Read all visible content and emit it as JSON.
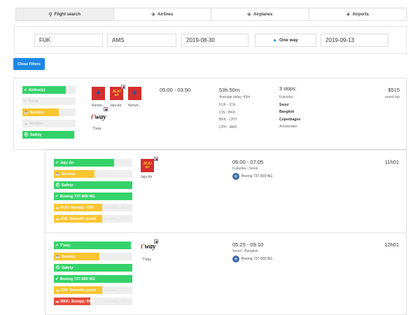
{
  "tabs": [
    {
      "label": "Flight search",
      "icon": "search-icon",
      "glyph": "🔍"
    },
    {
      "label": "Airlines",
      "icon": "airline-icon",
      "glyph": "✈"
    },
    {
      "label": "Airplanes",
      "icon": "airplane-icon",
      "glyph": "✈"
    },
    {
      "label": "Airports",
      "icon": "airport-icon",
      "glyph": "✈"
    }
  ],
  "search": {
    "from": "FUK",
    "to": "AMS",
    "depart_date": "2019-08-30",
    "trip_type": "One way",
    "return_date": "2019-09-13"
  },
  "close_filters_label": "Close Filters",
  "colors": {
    "accent": "#1e88e5",
    "green": "#35d26a",
    "yellow": "#f9c531",
    "red": "#e74c3c"
  },
  "main_result": {
    "ratings": [
      {
        "label": "Airline(s)",
        "icon": "check-icon",
        "level": 0.82,
        "color": "green",
        "dim": false
      },
      {
        "label": "Plane",
        "icon": "plane-icon",
        "level": 0.0,
        "color": "none",
        "dim": true
      },
      {
        "label": "Service",
        "icon": "service-icon",
        "level": 0.69,
        "color": "yellow",
        "dim": false
      },
      {
        "label": "Weather",
        "icon": "weather-icon",
        "level": 0.0,
        "color": "none",
        "dim": true
      },
      {
        "label": "Safety",
        "icon": "safety-icon",
        "level": 0.97,
        "color": "green",
        "dim": false
      }
    ],
    "airlines": [
      "Norwe...",
      "Jeju Air",
      "Norwe..."
    ],
    "airline4": "T'way",
    "time": "05:00 - 03:50",
    "duration": "53h 50m",
    "avg_delay": "Average delay: 43m",
    "legs": [
      "FUK - ICN",
      "ICN - BKK",
      "BKK - CPH",
      "CPH - AMS"
    ],
    "stops_title": "3 stops:",
    "stops": [
      {
        "city": "Fukuoka",
        "bold": false
      },
      {
        "city": "Seoul",
        "bold": true
      },
      {
        "city": "Bangkok",
        "bold": true
      },
      {
        "city": "Copenhagen",
        "bold": true
      },
      {
        "city": "Amsterdam",
        "bold": false
      }
    ],
    "price": "$515",
    "price_note": "round trip"
  },
  "segments": [
    {
      "ratings": [
        {
          "label": "Jeju Air",
          "level": 0.77,
          "color": "green",
          "ghost": ""
        },
        {
          "label": "Service",
          "level": 0.52,
          "color": "yellow",
          "ghost": ""
        },
        {
          "label": "Safety",
          "level": 1.0,
          "color": "green",
          "ghost": ""
        },
        {
          "label": "Boeing 737-800 NG",
          "level": 1.0,
          "color": "green",
          "ghost": ""
        },
        {
          "label": "FUK: Bumpy: 79%",
          "level": 0.62,
          "color": "yellow",
          "ghost": "Humidity, 28°C"
        },
        {
          "label": "ICN: Smooth: good",
          "level": 0.62,
          "color": "yellow",
          "ghost": "weather, 23°C"
        }
      ],
      "airline": "Jeju Air",
      "time": "05:00 - 07:05",
      "route": "Fukuoka - Seoul",
      "aircraft": "Boeing 737-800 NG",
      "duration": "11h01"
    },
    {
      "ratings": [
        {
          "label": "T'way",
          "level": 0.98,
          "color": "green",
          "ghost": ""
        },
        {
          "label": "Service",
          "level": 0.58,
          "color": "yellow",
          "ghost": ""
        },
        {
          "label": "Safety",
          "level": 1.0,
          "color": "green",
          "ghost": ""
        },
        {
          "label": "Boeing 737-800 NG",
          "level": 1.0,
          "color": "green",
          "ghost": ""
        },
        {
          "label": "ICN: Smooth: good",
          "level": 0.62,
          "color": "yellow",
          "ghost": "weather, 23°C"
        },
        {
          "label": "BKK: Bumpy: 84%",
          "level": 0.46,
          "color": "red",
          "ghost": "Humidity, 29°C"
        }
      ],
      "airline": "T'way",
      "time": "05:25 - 09:10",
      "route": "Seoul - Bangkok",
      "aircraft": "Boeing 737-800 NG",
      "duration": "12h01"
    }
  ]
}
